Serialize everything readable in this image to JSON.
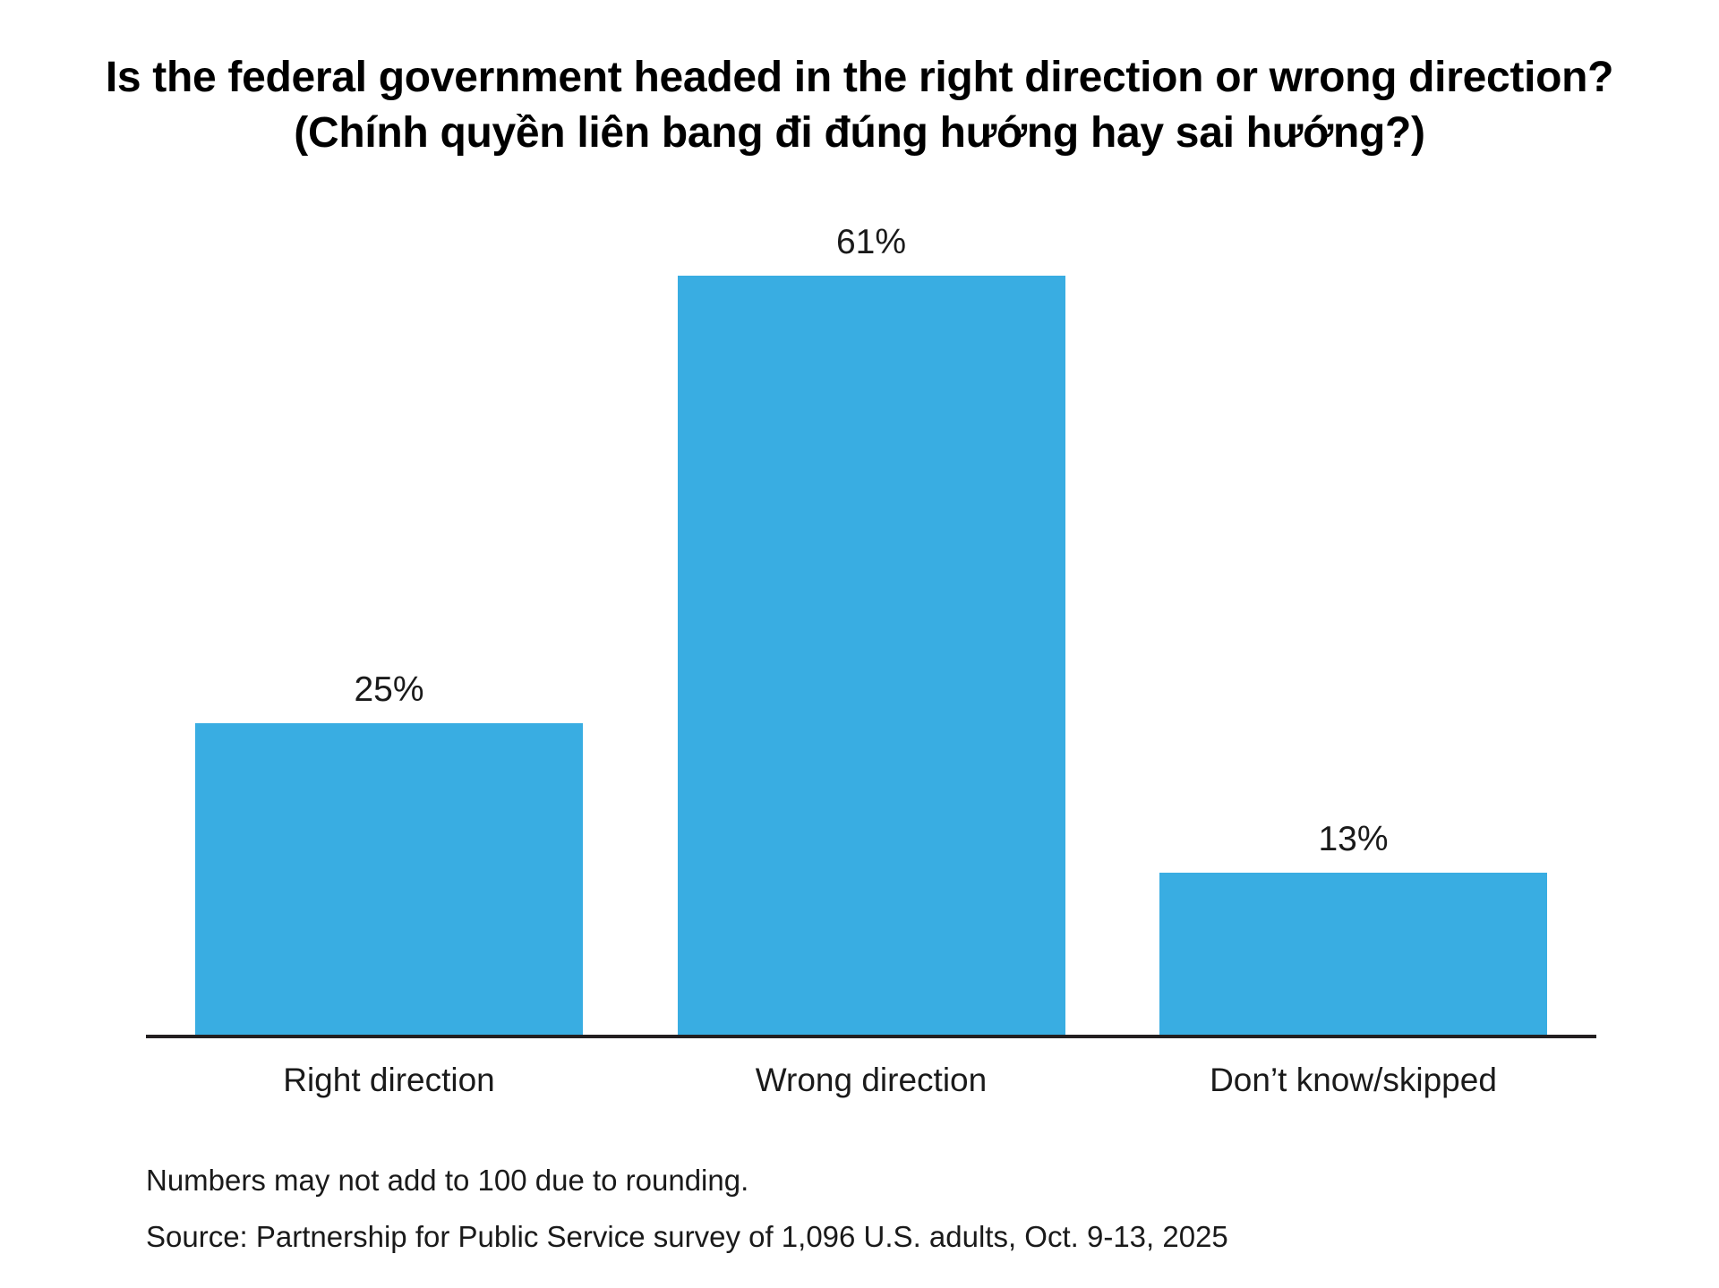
{
  "title": {
    "line1": "Is the federal government headed in the right direction or wrong direction?",
    "line2": "(Chính quyền liên bang đi đúng hướng hay sai hướng?)"
  },
  "chart_data": {
    "type": "bar",
    "title": "Is the federal government headed in the right direction or wrong direction? (Chính quyền liên bang đi đúng hướng hay sai hướng?)",
    "categories": [
      "Right direction",
      "Wrong direction",
      "Don’t know/skipped"
    ],
    "values": [
      25,
      61,
      13
    ],
    "value_labels": [
      "25%",
      "61%",
      "13%"
    ],
    "xlabel": "",
    "ylabel": "",
    "ylim": [
      0,
      65
    ],
    "grid": false,
    "legend": "none",
    "y_axis_shown": false,
    "data_labels_position": "above-bar"
  },
  "colors": {
    "bar": "#39ade2",
    "axis": "#231f20",
    "text": "#1a1a1a",
    "title_text": "#000000",
    "background": "#ffffff"
  },
  "footnotes": {
    "note": "Numbers may not add to 100 due to rounding.",
    "source": "Source: Partnership for Public Service survey of 1,096 U.S. adults, Oct. 9-13, 2025"
  }
}
